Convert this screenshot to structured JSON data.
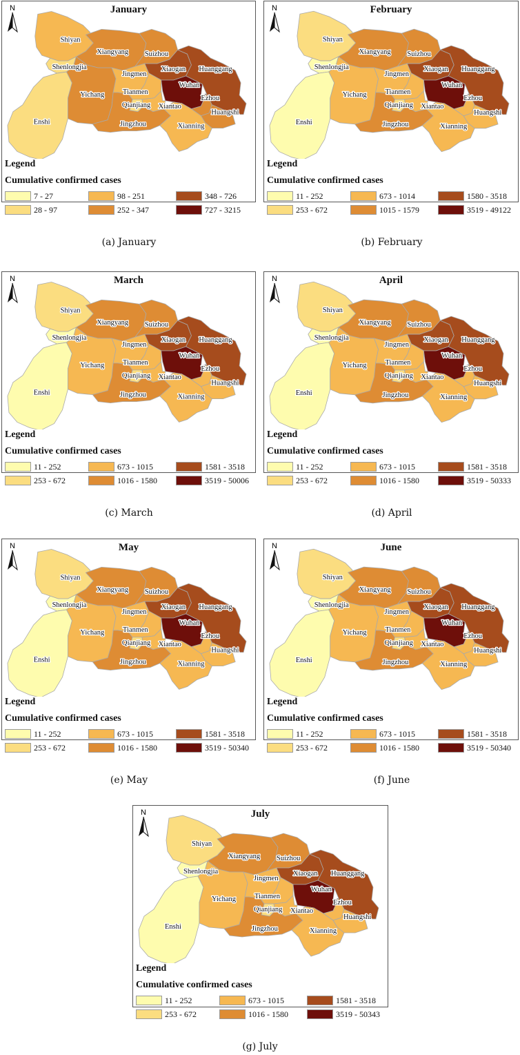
{
  "colors": {
    "c1": "#fefcae",
    "c2": "#fbdd80",
    "c3": "#f6b852",
    "c4": "#de8c34",
    "c5": "#a64c1d",
    "c6": "#6e0f0a"
  },
  "north_label": "N",
  "legend_heading": "Legend",
  "legend_subheading": "Cumulative confirmed cases",
  "panels": [
    {
      "title": "January",
      "caption": "(a)  January",
      "legend": [
        "7 - 27",
        "28 - 97",
        "98 - 251",
        "252 - 347",
        "348 - 726",
        "727 - 3215"
      ],
      "regions": {
        "Shiyan": "c3",
        "Shenlongjia": "c2",
        "Enshi": "c2",
        "Yichang": "c4",
        "Xiangyang": "c4",
        "Suizhou": "c4",
        "Jingmen": "c3",
        "Xiaogan": "c5",
        "Huanggang": "c5",
        "Wuhan": "c6",
        "Ezhou": "c4",
        "Huangshi": "c4",
        "Xianning": "c3",
        "Jingzhou": "c4",
        "Tianmen": "c3",
        "Qianjiang": "c2",
        "Xiantao": "c3"
      }
    },
    {
      "title": "February",
      "caption": "(b)  February",
      "legend": [
        "11 - 252",
        "253 - 672",
        "673 - 1014",
        "1015 - 1579",
        "1580 - 3518",
        "3519 - 49122"
      ],
      "regions": {
        "Shiyan": "c2",
        "Shenlongjia": "c1",
        "Enshi": "c1",
        "Yichang": "c3",
        "Xiangyang": "c4",
        "Suizhou": "c4",
        "Jingmen": "c3",
        "Xiaogan": "c5",
        "Huanggang": "c5",
        "Wuhan": "c6",
        "Ezhou": "c3",
        "Huangshi": "c3",
        "Xianning": "c3",
        "Jingzhou": "c4",
        "Tianmen": "c3",
        "Qianjiang": "c2",
        "Xiantao": "c3"
      }
    },
    {
      "title": "March",
      "caption": "(c)  March",
      "legend": [
        "11 - 252",
        "253 - 672",
        "673 - 1015",
        "1016 - 1580",
        "1581 - 3518",
        "3519 - 50006"
      ],
      "regions": {
        "Shiyan": "c2",
        "Shenlongjia": "c1",
        "Enshi": "c1",
        "Yichang": "c3",
        "Xiangyang": "c4",
        "Suizhou": "c4",
        "Jingmen": "c3",
        "Xiaogan": "c5",
        "Huanggang": "c5",
        "Wuhan": "c6",
        "Ezhou": "c3",
        "Huangshi": "c3",
        "Xianning": "c3",
        "Jingzhou": "c4",
        "Tianmen": "c3",
        "Qianjiang": "c2",
        "Xiantao": "c3"
      }
    },
    {
      "title": "April",
      "caption": "(d)  April",
      "legend": [
        "11 - 252",
        "253 - 672",
        "673 - 1015",
        "1016 - 1580",
        "1581 - 3518",
        "3519 - 50333"
      ],
      "regions": {
        "Shiyan": "c2",
        "Shenlongjia": "c1",
        "Enshi": "c1",
        "Yichang": "c3",
        "Xiangyang": "c4",
        "Suizhou": "c4",
        "Jingmen": "c3",
        "Xiaogan": "c5",
        "Huanggang": "c5",
        "Wuhan": "c6",
        "Ezhou": "c3",
        "Huangshi": "c3",
        "Xianning": "c3",
        "Jingzhou": "c4",
        "Tianmen": "c3",
        "Qianjiang": "c2",
        "Xiantao": "c3"
      }
    },
    {
      "title": "May",
      "caption": "(e)  May",
      "legend": [
        "11 - 252",
        "253 - 672",
        "673 - 1015",
        "1016 - 1580",
        "1581 - 3518",
        "3519 - 50340"
      ],
      "regions": {
        "Shiyan": "c2",
        "Shenlongjia": "c1",
        "Enshi": "c1",
        "Yichang": "c3",
        "Xiangyang": "c4",
        "Suizhou": "c4",
        "Jingmen": "c3",
        "Xiaogan": "c5",
        "Huanggang": "c5",
        "Wuhan": "c6",
        "Ezhou": "c3",
        "Huangshi": "c3",
        "Xianning": "c3",
        "Jingzhou": "c4",
        "Tianmen": "c3",
        "Qianjiang": "c2",
        "Xiantao": "c3"
      }
    },
    {
      "title": "June",
      "caption": "(f)  June",
      "legend": [
        "11 - 252",
        "253 - 672",
        "673 - 1015",
        "1016 - 1580",
        "1581 - 3518",
        "3519 - 50340"
      ],
      "regions": {
        "Shiyan": "c2",
        "Shenlongjia": "c1",
        "Enshi": "c1",
        "Yichang": "c3",
        "Xiangyang": "c4",
        "Suizhou": "c4",
        "Jingmen": "c3",
        "Xiaogan": "c5",
        "Huanggang": "c5",
        "Wuhan": "c6",
        "Ezhou": "c3",
        "Huangshi": "c3",
        "Xianning": "c3",
        "Jingzhou": "c4",
        "Tianmen": "c3",
        "Qianjiang": "c2",
        "Xiantao": "c3"
      }
    },
    {
      "title": "July",
      "caption": "(g)  July",
      "legend": [
        "11 - 252",
        "253 - 672",
        "673 - 1015",
        "1016 - 1580",
        "1581 - 3518",
        "3519 - 50343"
      ],
      "regions": {
        "Shiyan": "c2",
        "Shenlongjia": "c1",
        "Enshi": "c1",
        "Yichang": "c3",
        "Xiangyang": "c4",
        "Suizhou": "c4",
        "Jingmen": "c3",
        "Xiaogan": "c5",
        "Huanggang": "c5",
        "Wuhan": "c6",
        "Ezhou": "c3",
        "Huangshi": "c3",
        "Xianning": "c3",
        "Jingzhou": "c4",
        "Tianmen": "c3",
        "Qianjiang": "c2",
        "Xiantao": "c3"
      }
    }
  ]
}
